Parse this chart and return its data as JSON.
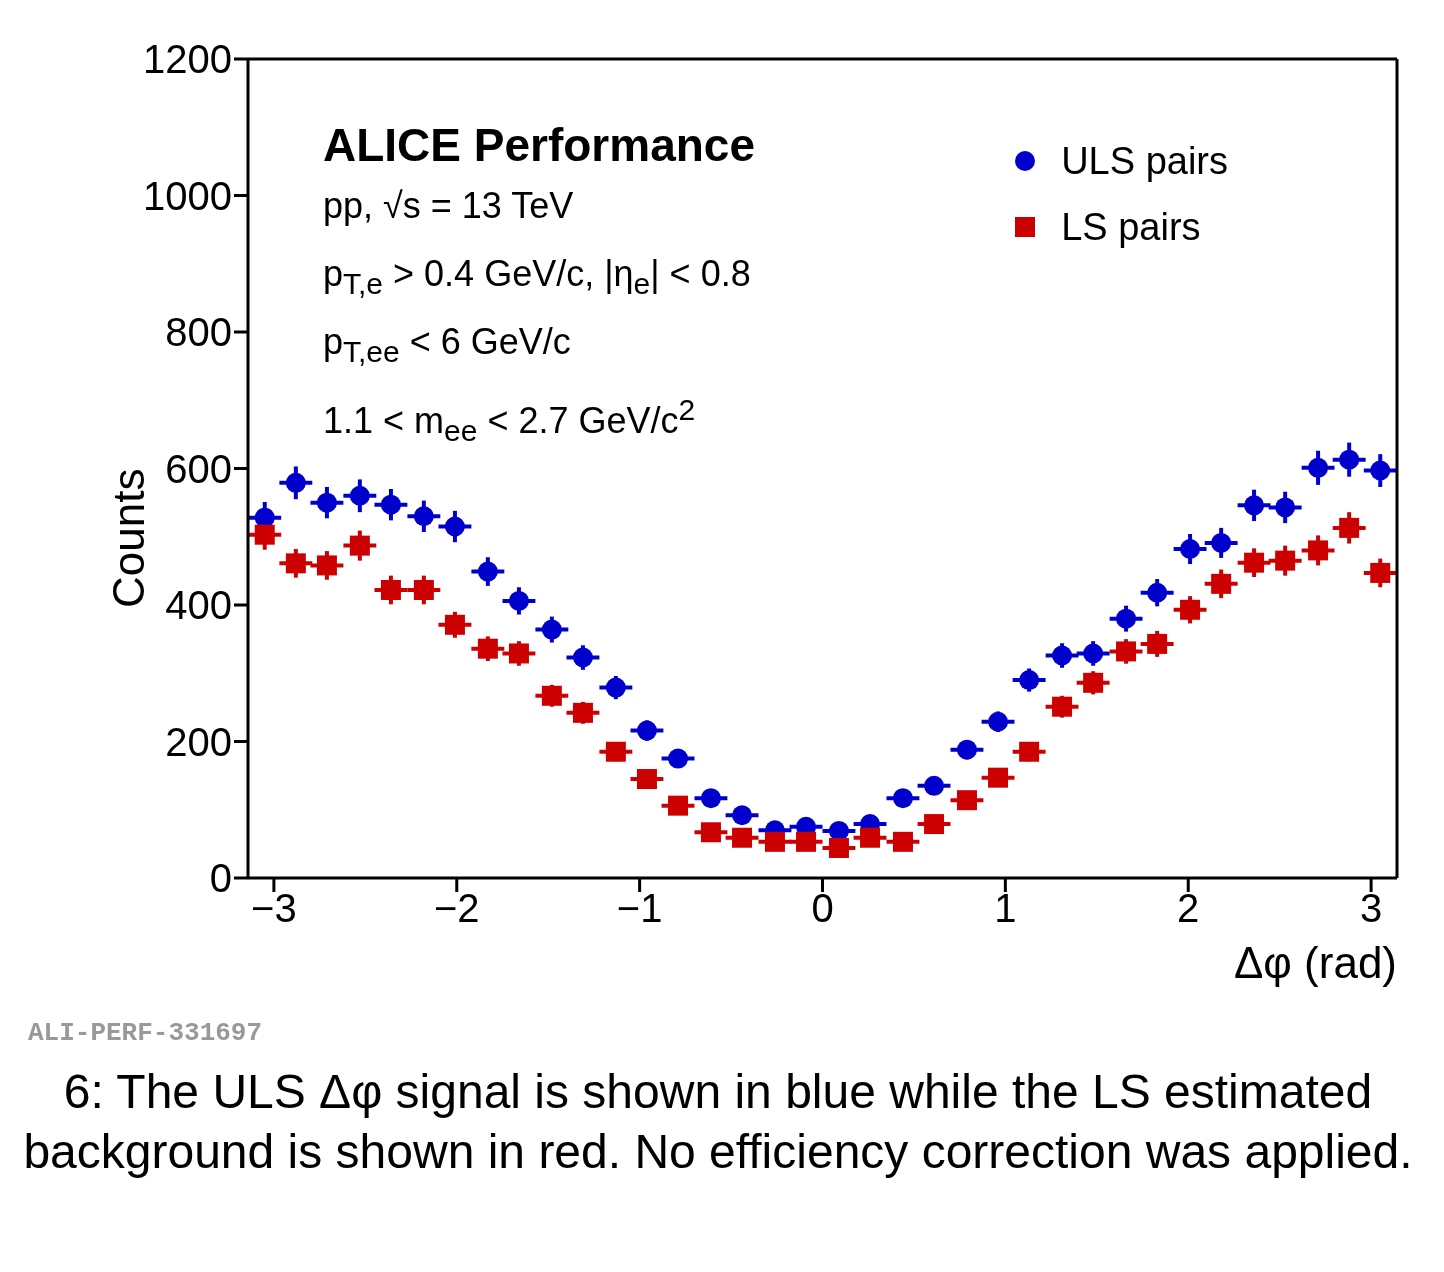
{
  "chart_data": {
    "type": "scatter",
    "title": "ALICE Performance",
    "xlabel": "Δφ (rad)",
    "ylabel": "Counts",
    "x": [
      -3.05,
      -2.88,
      -2.71,
      -2.53,
      -2.36,
      -2.18,
      -2.01,
      -1.83,
      -1.66,
      -1.48,
      -1.31,
      -1.13,
      -0.96,
      -0.79,
      -0.61,
      -0.44,
      -0.26,
      -0.09,
      0.09,
      0.26,
      0.44,
      0.61,
      0.79,
      0.96,
      1.13,
      1.31,
      1.48,
      1.66,
      1.83,
      2.01,
      2.18,
      2.36,
      2.53,
      2.71,
      2.88,
      3.05
    ],
    "series": [
      {
        "name": "ULS pairs",
        "color": "#0000cc",
        "marker": "circle",
        "values": [
          528,
          579,
          550,
          560,
          547,
          530,
          515,
          449,
          406,
          364,
          323,
          279,
          216,
          175,
          117,
          92,
          70,
          75,
          69,
          79,
          117,
          135,
          188,
          229,
          290,
          326,
          329,
          380,
          418,
          482,
          491,
          546,
          543,
          601,
          613,
          597
        ],
        "errors": [
          23,
          24,
          23,
          24,
          23,
          23,
          23,
          21,
          20,
          19,
          18,
          17,
          15,
          13,
          11,
          10,
          8,
          9,
          8,
          9,
          11,
          12,
          14,
          15,
          17,
          18,
          18,
          19,
          20,
          22,
          22,
          23,
          23,
          25,
          25,
          24
        ],
        "xerrors": [
          0.09,
          0.09,
          0.09,
          0.09,
          0.09,
          0.09,
          0.09,
          0.09,
          0.09,
          0.09,
          0.09,
          0.09,
          0.09,
          0.09,
          0.09,
          0.09,
          0.09,
          0.09,
          0.09,
          0.09,
          0.09,
          0.09,
          0.09,
          0.09,
          0.09,
          0.09,
          0.09,
          0.09,
          0.09,
          0.09,
          0.09,
          0.09,
          0.09,
          0.09,
          0.09,
          0.09
        ]
      },
      {
        "name": "LS pairs",
        "color": "#cc0000",
        "marker": "square",
        "values": [
          503,
          461,
          458,
          487,
          422,
          422,
          371,
          336,
          329,
          267,
          242,
          185,
          145,
          106,
          67,
          59,
          53,
          53,
          44,
          59,
          53,
          79,
          114,
          147,
          185,
          251,
          286,
          332,
          343,
          393,
          431,
          462,
          465,
          480,
          513,
          447
        ],
        "errors": [
          22,
          21,
          21,
          22,
          21,
          21,
          19,
          18,
          18,
          16,
          16,
          14,
          12,
          10,
          8,
          8,
          7,
          7,
          7,
          8,
          7,
          9,
          11,
          12,
          14,
          16,
          17,
          18,
          19,
          20,
          21,
          21,
          22,
          22,
          23,
          21
        ],
        "xerrors": [
          0.09,
          0.09,
          0.09,
          0.09,
          0.09,
          0.09,
          0.09,
          0.09,
          0.09,
          0.09,
          0.09,
          0.09,
          0.09,
          0.09,
          0.09,
          0.09,
          0.09,
          0.09,
          0.09,
          0.09,
          0.09,
          0.09,
          0.09,
          0.09,
          0.09,
          0.09,
          0.09,
          0.09,
          0.09,
          0.09,
          0.09,
          0.09,
          0.09,
          0.09,
          0.09,
          0.09
        ]
      }
    ],
    "xlim": [
      -3.1416,
      3.1416
    ],
    "xticks": [
      -3,
      -2,
      -1,
      0,
      1,
      2,
      3
    ],
    "ylim": [
      0,
      1200
    ],
    "yticks": [
      0,
      200,
      400,
      600,
      800,
      1000,
      1200
    ],
    "grid": false,
    "legend": "top right",
    "annotations": [
      "pp, √s = 13 TeV",
      "p$_{T,e}$ > 0.4 GeV/c, |η$_{e}$| < 0.8",
      "p$_{T,ee}$ < 6 GeV/c",
      "1.1 < m$_{ee}$ < 2.7 GeV/c$^{2}$",
      "ALI-PERF-331697",
      "6: The ULS Δφ signal is shown in blue while the LS estimated background is shown in red. No efficiency correction was applied."
    ]
  }
}
